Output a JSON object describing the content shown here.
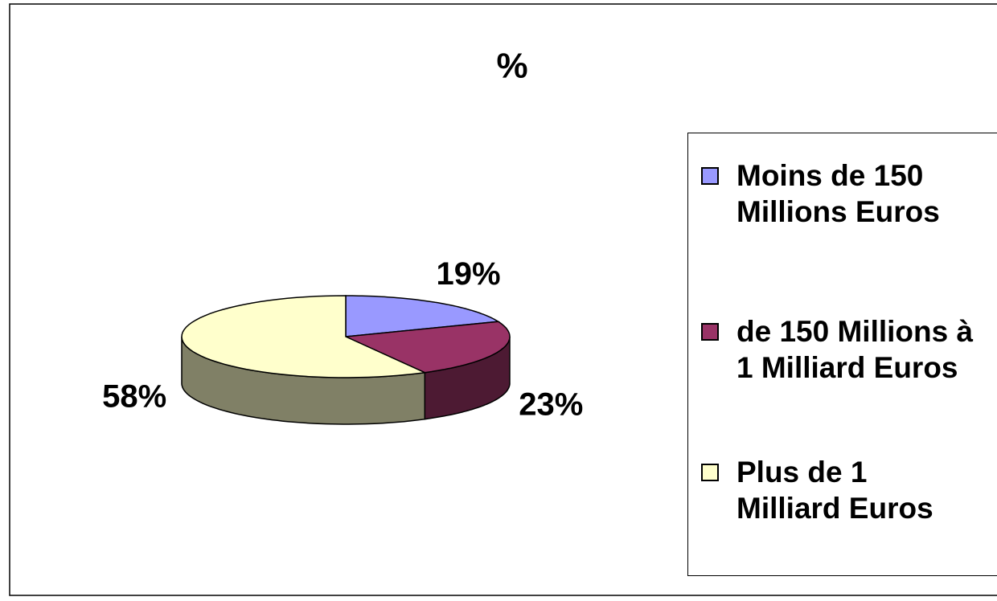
{
  "chart_data": {
    "type": "pie",
    "title": "%",
    "categories": [
      "Moins de 150 Millions Euros",
      "de 150 Millions à 1 Milliard Euros",
      "Plus de 1 Milliard Euros"
    ],
    "values": [
      19,
      23,
      58
    ],
    "value_labels": [
      "19%",
      "23%",
      "58%"
    ],
    "colors": [
      "#9999ff",
      "#993366",
      "#ffffcc"
    ],
    "legend": "right"
  }
}
